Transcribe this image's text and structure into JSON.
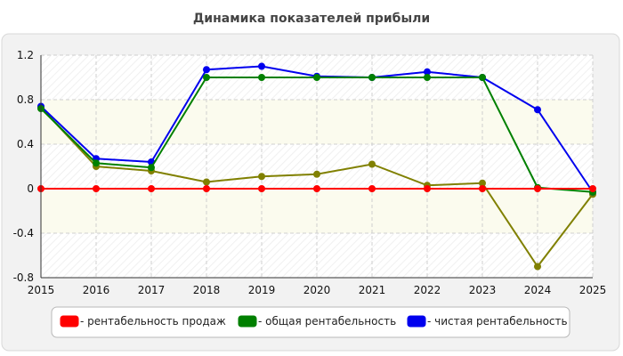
{
  "chart_data": {
    "type": "line",
    "title": "Динамика показателей прибыли",
    "xlabel": "",
    "ylabel": "",
    "x": [
      "2015",
      "2016",
      "2017",
      "2018",
      "2019",
      "2020",
      "2021",
      "2022",
      "2023",
      "2024",
      "2025"
    ],
    "ylim": [
      -0.8,
      1.2
    ],
    "yticks": [
      "1.2",
      "0.8",
      "0.4",
      "0",
      "-0.4",
      "-0.8"
    ],
    "grid": true,
    "legend_position": "bottom",
    "series": [
      {
        "name": "- рентабельность продаж",
        "color": "#ff0000",
        "values": [
          0,
          0,
          0,
          0,
          0,
          0,
          0,
          0,
          0,
          0,
          0
        ]
      },
      {
        "name": "- общая рентабельность",
        "color": "#008000",
        "values": [
          0.72,
          0.23,
          0.19,
          1.0,
          1.0,
          1.0,
          1.0,
          1.0,
          1.0,
          0.01,
          -0.03
        ]
      },
      {
        "name": "- чистая рентабельность",
        "color": "#0000ee",
        "values": [
          0.74,
          0.27,
          0.24,
          1.07,
          1.1,
          1.01,
          1.0,
          1.05,
          1.0,
          0.71,
          -0.03
        ]
      },
      {
        "name": "",
        "color": "#808000",
        "values": [
          0.73,
          0.2,
          0.16,
          0.06,
          0.11,
          0.13,
          0.22,
          0.03,
          0.05,
          -0.7,
          -0.05
        ]
      }
    ]
  }
}
